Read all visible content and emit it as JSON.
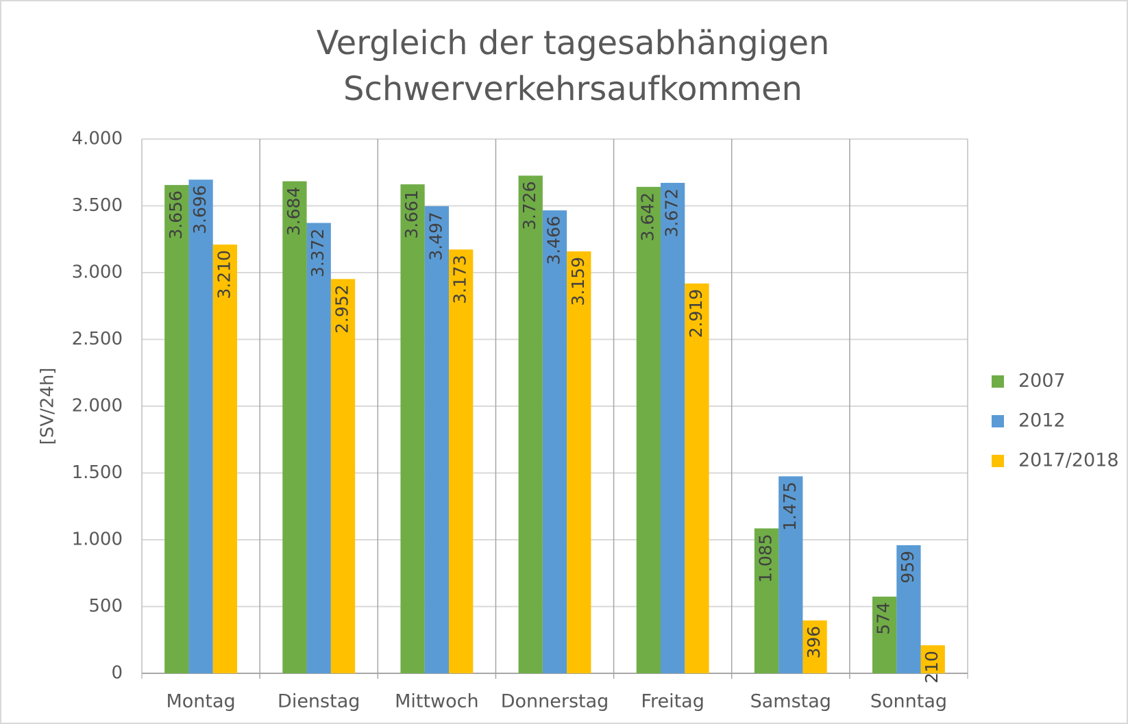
{
  "chart_data": {
    "type": "bar",
    "title": [
      "Vergleich der tagesabhängigen",
      "Schwerverkehrsaufkommen"
    ],
    "ylabel": "[SV/24h]",
    "categories": [
      "Montag",
      "Dienstag",
      "Mittwoch",
      "Donnerstag",
      "Freitag",
      "Samstag",
      "Sonntag"
    ],
    "series": [
      {
        "name": "2007",
        "color": "#70ad47",
        "values": [
          3656,
          3684,
          3661,
          3726,
          3642,
          1085,
          574
        ],
        "value_labels": [
          "3.656",
          "3.684",
          "3.661",
          "3.726",
          "3.642",
          "1.085",
          "574"
        ]
      },
      {
        "name": "2012",
        "color": "#5b9bd5",
        "values": [
          3696,
          3372,
          3497,
          3466,
          3672,
          1475,
          959
        ],
        "value_labels": [
          "3.696",
          "3.372",
          "3.497",
          "3.466",
          "3.672",
          "1.475",
          "959"
        ]
      },
      {
        "name": "2017/2018",
        "color": "#ffc000",
        "values": [
          3210,
          2952,
          3173,
          3159,
          2919,
          396,
          210
        ],
        "value_labels": [
          "3.210",
          "2.952",
          "3.173",
          "3.159",
          "2.919",
          "396",
          "210"
        ]
      }
    ],
    "ylim": [
      0,
      4000
    ],
    "yticks": [
      0,
      500,
      {
        "value": 1000,
        "label": "1.000"
      },
      {
        "value": 1500,
        "label": "1.500"
      },
      {
        "value": 2000,
        "label": "2.000"
      },
      {
        "value": 2500,
        "label": "2.500"
      },
      {
        "value": 3000,
        "label": "3.000"
      },
      {
        "value": 3500,
        "label": "3.500"
      },
      {
        "value": 4000,
        "label": "4.000"
      }
    ],
    "grid": true,
    "legend": "right"
  }
}
